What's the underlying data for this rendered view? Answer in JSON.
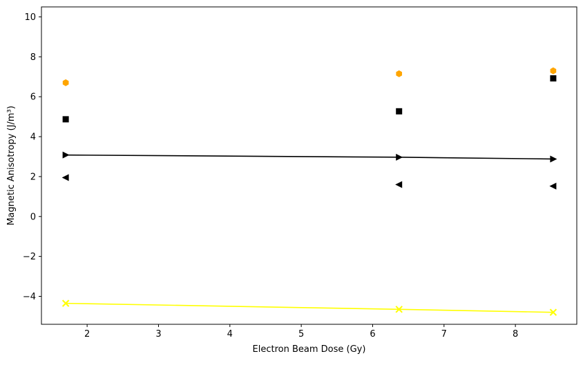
{
  "chart_data": {
    "type": "line",
    "title": "",
    "xlabel": "Electron Beam Dose (Gy)",
    "ylabel": "Magnetic Anisotropy (J/m³)",
    "xlim": [
      1.36,
      8.86
    ],
    "ylim": [
      -5.4,
      10.5
    ],
    "xticks": [
      2,
      3,
      4,
      5,
      6,
      7,
      8
    ],
    "yticks": [
      -4,
      -2,
      0,
      2,
      4,
      6,
      8,
      10
    ],
    "grid": false,
    "legend": "none",
    "x": [
      1.7,
      6.37,
      8.53
    ],
    "series": [
      {
        "values": [
          6.7,
          7.15,
          7.3
        ],
        "marker": "hexagon",
        "color": "#ffa500",
        "line": false
      },
      {
        "values": [
          4.87,
          5.27,
          6.92
        ],
        "marker": "square",
        "color": "#000000",
        "line": false
      },
      {
        "values": [
          3.08,
          2.97,
          2.88
        ],
        "marker": "triangle-right",
        "color": "#000000",
        "line": true
      },
      {
        "values": [
          1.95,
          1.6,
          1.52
        ],
        "marker": "triangle-left",
        "color": "#000000",
        "line": false
      },
      {
        "values": [
          -4.35,
          -4.65,
          -4.8
        ],
        "marker": "x",
        "color": "#ffff00",
        "line": true
      }
    ]
  }
}
